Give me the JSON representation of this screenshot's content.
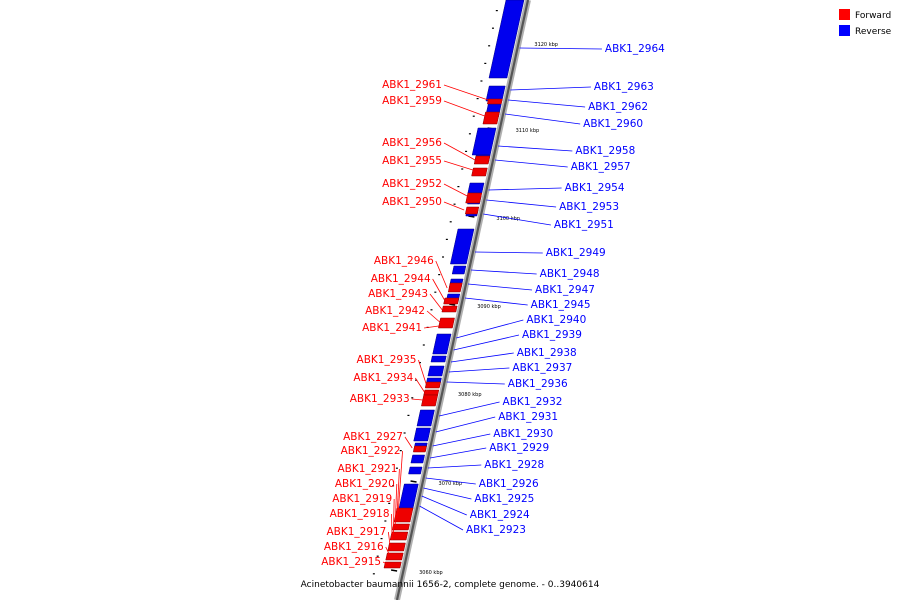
{
  "caption": "Acinetobacter baumannii 1656-2, complete genome. - 0..3940614",
  "legend": [
    {
      "label": "Forward",
      "color": "#ff0000"
    },
    {
      "label": "Reverse",
      "color": "#0000ff"
    }
  ],
  "ticks": [
    "3120 kbp",
    "3110 kbp",
    "3100 kbp",
    "3090 kbp",
    "3080 kbp",
    "3070 kbp",
    "3060 kbp"
  ],
  "forward_genes": [
    "ABK1_2961",
    "ABK1_2959",
    "ABK1_2956",
    "ABK1_2955",
    "ABK1_2952",
    "ABK1_2950",
    "ABK1_2946",
    "ABK1_2944",
    "ABK1_2943",
    "ABK1_2942",
    "ABK1_2941",
    "ABK1_2935",
    "ABK1_2934",
    "ABK1_2933",
    "ABK1_2927",
    "ABK1_2922",
    "ABK1_2921",
    "ABK1_2920",
    "ABK1_2919",
    "ABK1_2918",
    "ABK1_2917",
    "ABK1_2916",
    "ABK1_2915"
  ],
  "reverse_genes": [
    "ABK1_2964",
    "ABK1_2963",
    "ABK1_2962",
    "ABK1_2960",
    "ABK1_2958",
    "ABK1_2957",
    "ABK1_2954",
    "ABK1_2953",
    "ABK1_2951",
    "ABK1_2949",
    "ABK1_2948",
    "ABK1_2947",
    "ABK1_2945",
    "ABK1_2940",
    "ABK1_2939",
    "ABK1_2938",
    "ABK1_2937",
    "ABK1_2936",
    "ABK1_2932",
    "ABK1_2931",
    "ABK1_2930",
    "ABK1_2929",
    "ABK1_2928",
    "ABK1_2926",
    "ABK1_2925",
    "ABK1_2924",
    "ABK1_2923"
  ]
}
